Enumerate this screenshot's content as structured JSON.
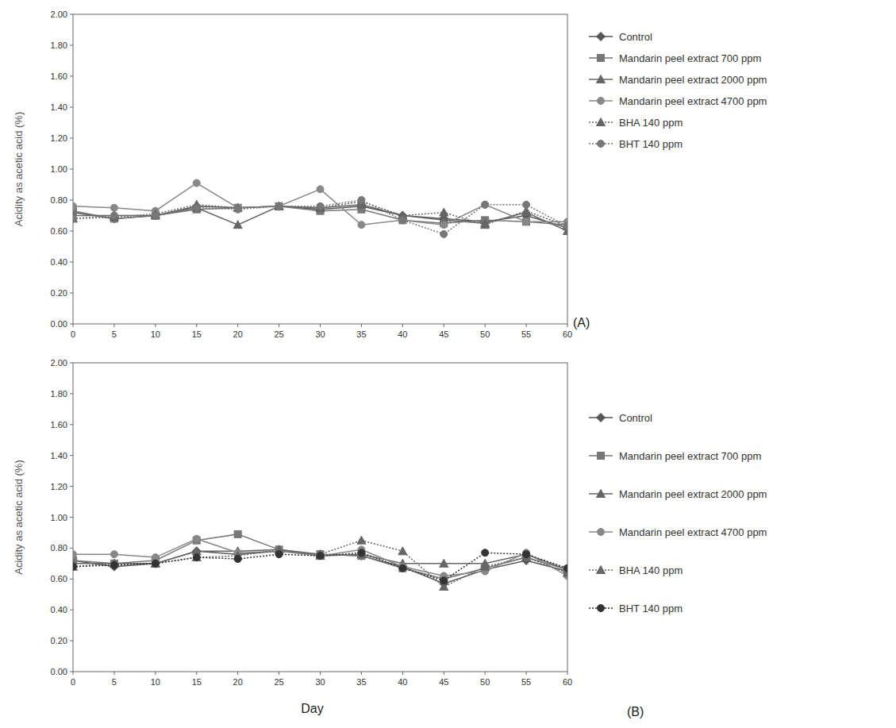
{
  "chart_data": [
    {
      "type": "line",
      "title": "(A)",
      "y_label": "Acidity as acetic acid (%)",
      "x": [
        0,
        5,
        10,
        15,
        20,
        25,
        30,
        35,
        40,
        45,
        50,
        55,
        60
      ],
      "xlim": [
        0,
        60
      ],
      "xticks": [
        0,
        5,
        10,
        15,
        20,
        25,
        30,
        35,
        40,
        45,
        50,
        55,
        60
      ],
      "ylim": [
        0,
        2
      ],
      "yticks": [
        {
          "value": 0,
          "label": "0.00"
        },
        {
          "value": 0.2,
          "label": "0.20"
        },
        {
          "value": 0.4,
          "label": "0.40"
        },
        {
          "value": 0.6,
          "label": "0.60"
        },
        {
          "value": 0.8,
          "label": "0.80"
        },
        {
          "value": 1.0,
          "label": "1.00"
        },
        {
          "value": 1.2,
          "label": "1.20"
        },
        {
          "value": 1.4,
          "label": "1.40"
        },
        {
          "value": 1.6,
          "label": "1.60"
        },
        {
          "value": 1.8,
          "label": "1.80"
        },
        {
          "value": 2.0,
          "label": "2.00"
        }
      ],
      "grid": false,
      "legend": "right",
      "series": [
        {
          "name": "Control",
          "color": "#555555",
          "marker": "diamond",
          "line_style": "solid",
          "values": [
            0.72,
            0.68,
            0.7,
            0.76,
            0.75,
            0.76,
            0.74,
            0.76,
            0.7,
            0.68,
            0.66,
            0.7,
            0.62
          ]
        },
        {
          "name": "Mandarin peel extract 700 ppm",
          "color": "#777777",
          "marker": "square",
          "line_style": "solid",
          "values": [
            0.73,
            0.68,
            0.7,
            0.74,
            0.75,
            0.76,
            0.73,
            0.74,
            0.67,
            0.65,
            0.67,
            0.66,
            0.64
          ]
        },
        {
          "name": "Mandarin peel extract 2000 ppm",
          "color": "#666666",
          "marker": "triangle",
          "line_style": "solid",
          "values": [
            0.7,
            0.7,
            0.7,
            0.75,
            0.64,
            0.76,
            0.75,
            0.77,
            0.7,
            0.67,
            0.65,
            0.72,
            0.6
          ]
        },
        {
          "name": "Mandarin peel extract 4700 ppm",
          "color": "#888888",
          "marker": "circle",
          "line_style": "solid",
          "values": [
            0.76,
            0.75,
            0.73,
            0.91,
            0.75,
            0.76,
            0.87,
            0.64,
            0.67,
            0.64,
            0.77,
            0.66,
            0.66
          ]
        },
        {
          "name": "BHA 140 ppm",
          "color": "#666666",
          "marker": "triangle",
          "line_style": "dotted",
          "values": [
            0.68,
            0.69,
            0.71,
            0.77,
            0.75,
            0.76,
            0.75,
            0.79,
            0.7,
            0.72,
            0.64,
            0.73,
            0.63
          ]
        },
        {
          "name": "BHT 140 ppm",
          "color": "#777777",
          "marker": "circle",
          "line_style": "dotted",
          "values": [
            0.68,
            0.7,
            0.7,
            0.75,
            0.74,
            0.76,
            0.76,
            0.8,
            0.67,
            0.58,
            0.77,
            0.77,
            0.63
          ]
        }
      ]
    },
    {
      "type": "line",
      "title": "(B)",
      "y_label": "Acidity as acetic acid (%)",
      "x_label": "Day",
      "x": [
        0,
        5,
        10,
        15,
        20,
        25,
        30,
        35,
        40,
        45,
        50,
        55,
        60
      ],
      "xlim": [
        0,
        60
      ],
      "xticks": [
        0,
        5,
        10,
        15,
        20,
        25,
        30,
        35,
        40,
        45,
        50,
        55,
        60
      ],
      "ylim": [
        0,
        2
      ],
      "yticks": [
        {
          "value": 0,
          "label": "0.00"
        },
        {
          "value": 0.2,
          "label": "0.20"
        },
        {
          "value": 0.4,
          "label": "0.40"
        },
        {
          "value": 0.6,
          "label": "0.60"
        },
        {
          "value": 0.8,
          "label": "0.80"
        },
        {
          "value": 1.0,
          "label": "1.00"
        },
        {
          "value": 1.2,
          "label": "1.20"
        },
        {
          "value": 1.4,
          "label": "1.40"
        },
        {
          "value": 1.6,
          "label": "1.60"
        },
        {
          "value": 1.8,
          "label": "1.80"
        },
        {
          "value": 2.0,
          "label": "2.00"
        }
      ],
      "grid": false,
      "legend": "right",
      "series": [
        {
          "name": "Control",
          "color": "#555555",
          "marker": "diamond",
          "line_style": "solid",
          "values": [
            0.72,
            0.68,
            0.7,
            0.78,
            0.76,
            0.78,
            0.76,
            0.75,
            0.68,
            0.57,
            0.66,
            0.72,
            0.65
          ]
        },
        {
          "name": "Mandarin peel extract 700 ppm",
          "color": "#777777",
          "marker": "square",
          "line_style": "solid",
          "values": [
            0.72,
            0.7,
            0.72,
            0.85,
            0.89,
            0.79,
            0.76,
            0.75,
            0.67,
            0.6,
            0.67,
            0.74,
            0.66
          ]
        },
        {
          "name": "Mandarin peel extract 2000 ppm",
          "color": "#666666",
          "marker": "triangle",
          "line_style": "solid",
          "values": [
            0.7,
            0.7,
            0.7,
            0.78,
            0.78,
            0.79,
            0.75,
            0.76,
            0.7,
            0.7,
            0.7,
            0.76,
            0.66
          ]
        },
        {
          "name": "Mandarin peel extract 4700 ppm",
          "color": "#888888",
          "marker": "circle",
          "line_style": "solid",
          "values": [
            0.76,
            0.76,
            0.74,
            0.86,
            0.77,
            0.78,
            0.75,
            0.79,
            0.68,
            0.62,
            0.65,
            0.77,
            0.62
          ]
        },
        {
          "name": "BHA 140 ppm",
          "color": "#666666",
          "marker": "triangle",
          "line_style": "dotted",
          "values": [
            0.68,
            0.7,
            0.7,
            0.74,
            0.75,
            0.79,
            0.76,
            0.85,
            0.78,
            0.55,
            0.68,
            0.74,
            0.64
          ]
        },
        {
          "name": "BHT 140 ppm",
          "color": "#333333",
          "marker": "circle",
          "line_style": "dotted",
          "values": [
            0.68,
            0.69,
            0.7,
            0.74,
            0.73,
            0.76,
            0.75,
            0.77,
            0.67,
            0.59,
            0.77,
            0.76,
            0.67
          ]
        }
      ]
    }
  ]
}
